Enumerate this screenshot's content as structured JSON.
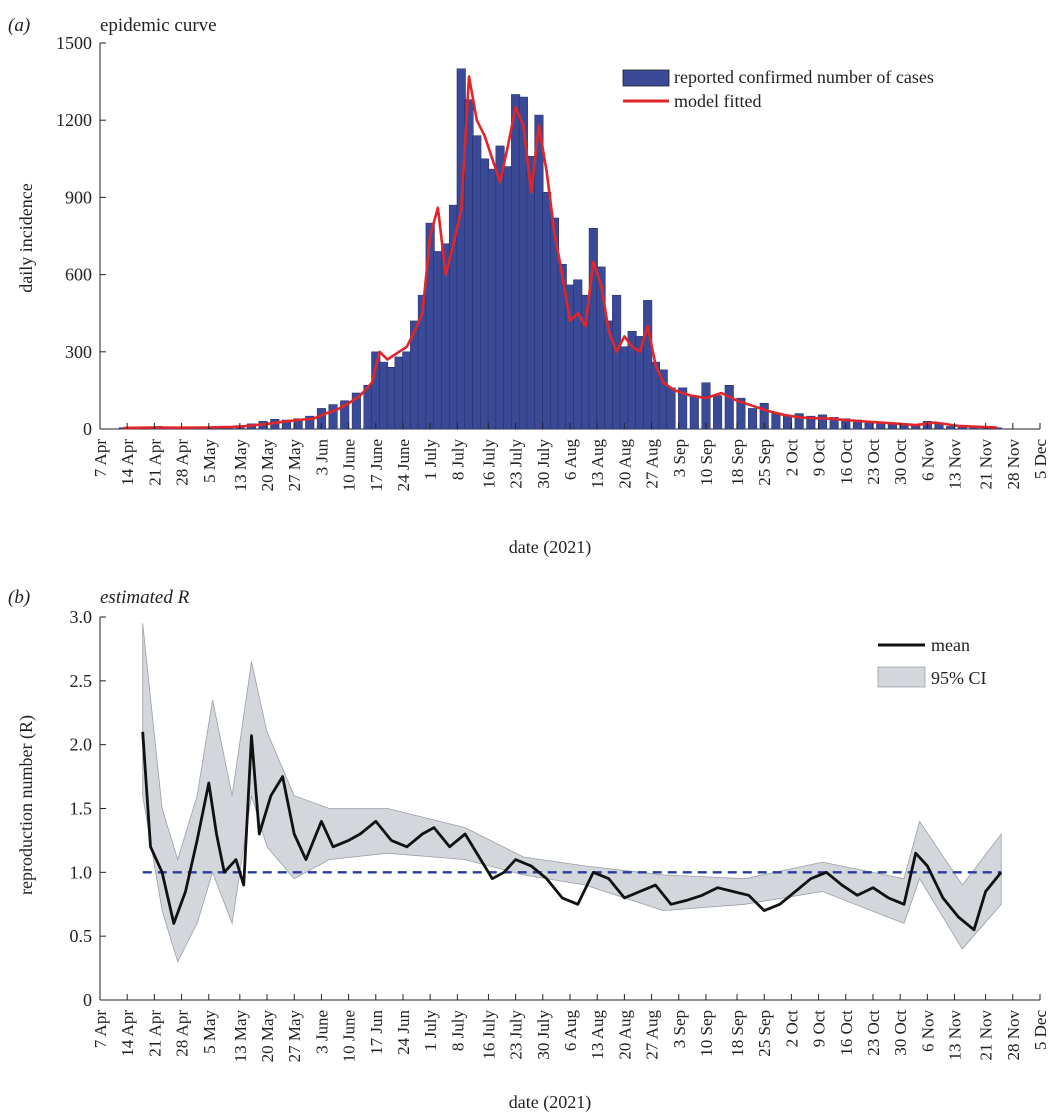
{
  "figure": {
    "xtick_labels": [
      "7 Apr",
      "14 Apr",
      "21 Apr",
      "28 Apr",
      "5 May",
      "13 May",
      "20 May",
      "27 May",
      "3 Jun",
      "10 June",
      "17 June",
      "24 June",
      "1 July",
      "8 July",
      "16 July",
      "23 July",
      "30 July",
      "6 Aug",
      "13 Aug",
      "20 Aug",
      "27 Aug",
      "3 Sep",
      "10 Sep",
      "18 Sep",
      "25 Sep",
      "2 Oct",
      "9 Oct",
      "16 Oct",
      "23 Oct",
      "30 Oct",
      "6 Nov",
      "13 Nov",
      "21 Nov",
      "28 Nov",
      "5 Dec"
    ]
  },
  "colors": {
    "bar": "#3b4a96",
    "model": "#e0262a",
    "mean": "#111111",
    "ci": "#d3d6da",
    "reference": "#2b3a9c"
  },
  "chart_data": [
    {
      "type": "bar",
      "panel_label": "(a)",
      "title": "epidemic curve",
      "xlabel": "date (2021)",
      "ylabel": "daily incidence",
      "ylim": [
        0,
        1500
      ],
      "yticks": [
        0,
        300,
        600,
        900,
        1200,
        1500
      ],
      "xticks": [
        "2021-04-07",
        "2021-04-14",
        "2021-04-21",
        "2021-04-28",
        "2021-05-05",
        "2021-05-13",
        "2021-05-20",
        "2021-05-27",
        "2021-06-03",
        "2021-06-10",
        "2021-06-17",
        "2021-06-24",
        "2021-07-01",
        "2021-07-08",
        "2021-07-16",
        "2021-07-23",
        "2021-07-30",
        "2021-08-06",
        "2021-08-13",
        "2021-08-20",
        "2021-08-27",
        "2021-09-03",
        "2021-09-10",
        "2021-09-18",
        "2021-09-25",
        "2021-10-02",
        "2021-10-09",
        "2021-10-16",
        "2021-10-23",
        "2021-10-30",
        "2021-11-06",
        "2021-11-13",
        "2021-11-21",
        "2021-11-28",
        "2021-12-05"
      ],
      "xtick_labels": [
        "7 Apr",
        "14 Apr",
        "21 Apr",
        "28 Apr",
        "5 May",
        "13 May",
        "20 May",
        "27 May",
        "3 Jun",
        "10 June",
        "17 June",
        "24 June",
        "1 July",
        "8 July",
        "16 July",
        "23 July",
        "30 July",
        "6 Aug",
        "13 Aug",
        "20 Aug",
        "27 Aug",
        "3 Sep",
        "10 Sep",
        "18 Sep",
        "25 Sep",
        "2 Oct",
        "9 Oct",
        "16 Oct",
        "23 Oct",
        "30 Oct",
        "6 Nov",
        "13 Nov",
        "21 Nov",
        "28 Nov",
        "5 Dec"
      ],
      "legend": [
        "reported confirmed number of cases",
        "model fitted"
      ],
      "legend_position": "top-right",
      "series": [
        {
          "name": "reported confirmed number of cases",
          "kind": "bar",
          "x": [
            "2021-04-13",
            "2021-04-15",
            "2021-04-20",
            "2021-04-22",
            "2021-04-25",
            "2021-04-28",
            "2021-05-01",
            "2021-05-04",
            "2021-05-07",
            "2021-05-10",
            "2021-05-13",
            "2021-05-16",
            "2021-05-19",
            "2021-05-22",
            "2021-05-25",
            "2021-05-28",
            "2021-05-31",
            "2021-06-03",
            "2021-06-06",
            "2021-06-09",
            "2021-06-12",
            "2021-06-15",
            "2021-06-17",
            "2021-06-19",
            "2021-06-21",
            "2021-06-23",
            "2021-06-25",
            "2021-06-27",
            "2021-06-29",
            "2021-07-01",
            "2021-07-03",
            "2021-07-05",
            "2021-07-07",
            "2021-07-09",
            "2021-07-11",
            "2021-07-13",
            "2021-07-15",
            "2021-07-17",
            "2021-07-19",
            "2021-07-21",
            "2021-07-23",
            "2021-07-25",
            "2021-07-27",
            "2021-07-29",
            "2021-07-31",
            "2021-08-02",
            "2021-08-04",
            "2021-08-06",
            "2021-08-08",
            "2021-08-10",
            "2021-08-12",
            "2021-08-14",
            "2021-08-16",
            "2021-08-18",
            "2021-08-20",
            "2021-08-22",
            "2021-08-24",
            "2021-08-26",
            "2021-08-28",
            "2021-08-30",
            "2021-09-01",
            "2021-09-04",
            "2021-09-07",
            "2021-09-10",
            "2021-09-13",
            "2021-09-16",
            "2021-09-19",
            "2021-09-22",
            "2021-09-25",
            "2021-09-28",
            "2021-10-01",
            "2021-10-04",
            "2021-10-07",
            "2021-10-10",
            "2021-10-13",
            "2021-10-16",
            "2021-10-19",
            "2021-10-22",
            "2021-10-25",
            "2021-10-28",
            "2021-10-31",
            "2021-11-03",
            "2021-11-06",
            "2021-11-09",
            "2021-11-12",
            "2021-11-15",
            "2021-11-18",
            "2021-11-21",
            "2021-11-24"
          ],
          "values": [
            5,
            6,
            4,
            10,
            8,
            5,
            6,
            7,
            9,
            10,
            12,
            20,
            30,
            38,
            35,
            40,
            50,
            80,
            95,
            110,
            140,
            170,
            300,
            260,
            240,
            280,
            300,
            420,
            520,
            800,
            690,
            720,
            870,
            1400,
            1280,
            1140,
            1050,
            1010,
            1100,
            1020,
            1300,
            1290,
            1060,
            1220,
            920,
            820,
            640,
            560,
            580,
            520,
            780,
            630,
            420,
            520,
            320,
            380,
            360,
            500,
            260,
            230,
            160,
            160,
            130,
            180,
            130,
            170,
            120,
            80,
            100,
            60,
            50,
            60,
            50,
            55,
            45,
            40,
            35,
            30,
            25,
            20,
            20,
            15,
            30,
            20,
            10,
            10,
            8,
            5,
            5
          ]
        },
        {
          "name": "model fitted",
          "kind": "line",
          "x": [
            "2021-04-13",
            "2021-04-20",
            "2021-04-27",
            "2021-05-04",
            "2021-05-11",
            "2021-05-15",
            "2021-05-20",
            "2021-05-24",
            "2021-05-28",
            "2021-06-01",
            "2021-06-04",
            "2021-06-07",
            "2021-06-10",
            "2021-06-13",
            "2021-06-16",
            "2021-06-18",
            "2021-06-20",
            "2021-06-23",
            "2021-06-25",
            "2021-06-27",
            "2021-06-29",
            "2021-07-01",
            "2021-07-03",
            "2021-07-05",
            "2021-07-07",
            "2021-07-09",
            "2021-07-11",
            "2021-07-13",
            "2021-07-15",
            "2021-07-17",
            "2021-07-19",
            "2021-07-21",
            "2021-07-23",
            "2021-07-25",
            "2021-07-27",
            "2021-07-29",
            "2021-07-31",
            "2021-08-02",
            "2021-08-04",
            "2021-08-06",
            "2021-08-08",
            "2021-08-10",
            "2021-08-12",
            "2021-08-14",
            "2021-08-16",
            "2021-08-18",
            "2021-08-20",
            "2021-08-22",
            "2021-08-24",
            "2021-08-26",
            "2021-08-28",
            "2021-08-30",
            "2021-09-02",
            "2021-09-06",
            "2021-09-10",
            "2021-09-14",
            "2021-09-18",
            "2021-09-22",
            "2021-09-26",
            "2021-09-30",
            "2021-10-04",
            "2021-10-08",
            "2021-10-12",
            "2021-10-16",
            "2021-10-22",
            "2021-10-28",
            "2021-11-03",
            "2021-11-08",
            "2021-11-14",
            "2021-11-20",
            "2021-11-24"
          ],
          "values": [
            4,
            6,
            5,
            6,
            8,
            12,
            20,
            28,
            35,
            40,
            60,
            75,
            100,
            130,
            180,
            300,
            270,
            300,
            320,
            380,
            450,
            750,
            860,
            600,
            720,
            850,
            1370,
            1200,
            1140,
            1050,
            960,
            1100,
            1250,
            1180,
            920,
            1180,
            1000,
            760,
            600,
            420,
            450,
            400,
            650,
            560,
            380,
            300,
            360,
            320,
            300,
            400,
            250,
            180,
            150,
            130,
            120,
            140,
            110,
            90,
            70,
            55,
            45,
            42,
            40,
            35,
            28,
            22,
            15,
            25,
            12,
            8,
            6
          ]
        }
      ]
    },
    {
      "type": "line",
      "panel_label": "(b)",
      "title": "estimated R",
      "xlabel": "date (2021)",
      "ylabel": "reproduction number (R)",
      "ylim": [
        0,
        3.0
      ],
      "yticks": [
        0,
        0.5,
        1.0,
        1.5,
        2.0,
        2.5,
        3.0
      ],
      "ytick_labels": [
        "0",
        "0.5",
        "1.0",
        "1.5",
        "2.0",
        "2.5",
        "3.0"
      ],
      "xticks": [
        "2021-04-07",
        "2021-04-14",
        "2021-04-21",
        "2021-04-28",
        "2021-05-05",
        "2021-05-13",
        "2021-05-20",
        "2021-05-27",
        "2021-06-03",
        "2021-06-10",
        "2021-06-17",
        "2021-06-24",
        "2021-07-01",
        "2021-07-08",
        "2021-07-16",
        "2021-07-23",
        "2021-07-30",
        "2021-08-06",
        "2021-08-13",
        "2021-08-20",
        "2021-08-27",
        "2021-09-03",
        "2021-09-10",
        "2021-09-18",
        "2021-09-25",
        "2021-10-02",
        "2021-10-09",
        "2021-10-16",
        "2021-10-23",
        "2021-10-30",
        "2021-11-06",
        "2021-11-13",
        "2021-11-21",
        "2021-11-28",
        "2021-12-05"
      ],
      "xtick_labels": [
        "7 Apr",
        "14 Apr",
        "21 Apr",
        "28 Apr",
        "5 May",
        "13 May",
        "20 May",
        "27 May",
        "3 June",
        "10 June",
        "17 Jun",
        "24 Jun",
        "1 July",
        "8 July",
        "16 July",
        "23 July",
        "30 July",
        "6 Aug",
        "13 Aug",
        "20 Aug",
        "27 Aug",
        "3 Sep",
        "10 Sep",
        "18 Sep",
        "25 Sep",
        "2 Oct",
        "9 Oct",
        "16 Oct",
        "23 Oct",
        "30 Oct",
        "6 Nov",
        "13 Nov",
        "21 Nov",
        "28 Nov",
        "5 Dec"
      ],
      "reference_line": {
        "y": 1.0,
        "style": "dashed"
      },
      "legend": [
        "mean",
        "95% CI"
      ],
      "legend_position": "top-right",
      "series": [
        {
          "name": "mean",
          "x": [
            "2021-04-18",
            "2021-04-20",
            "2021-04-23",
            "2021-04-26",
            "2021-04-29",
            "2021-05-02",
            "2021-05-05",
            "2021-05-07",
            "2021-05-09",
            "2021-05-12",
            "2021-05-14",
            "2021-05-16",
            "2021-05-18",
            "2021-05-21",
            "2021-05-24",
            "2021-05-27",
            "2021-05-30",
            "2021-06-03",
            "2021-06-06",
            "2021-06-10",
            "2021-06-13",
            "2021-06-17",
            "2021-06-21",
            "2021-06-25",
            "2021-06-29",
            "2021-07-02",
            "2021-07-06",
            "2021-07-10",
            "2021-07-14",
            "2021-07-17",
            "2021-07-20",
            "2021-07-23",
            "2021-07-27",
            "2021-07-31",
            "2021-08-04",
            "2021-08-08",
            "2021-08-12",
            "2021-08-16",
            "2021-08-20",
            "2021-08-24",
            "2021-08-28",
            "2021-09-01",
            "2021-09-05",
            "2021-09-09",
            "2021-09-13",
            "2021-09-17",
            "2021-09-21",
            "2021-09-25",
            "2021-09-29",
            "2021-10-03",
            "2021-10-07",
            "2021-10-11",
            "2021-10-15",
            "2021-10-19",
            "2021-10-23",
            "2021-10-27",
            "2021-10-31",
            "2021-11-03",
            "2021-11-06",
            "2021-11-10",
            "2021-11-14",
            "2021-11-18",
            "2021-11-21",
            "2021-11-25"
          ],
          "values": [
            2.1,
            1.2,
            1.0,
            0.6,
            0.85,
            1.25,
            1.7,
            1.3,
            1.0,
            1.1,
            0.9,
            2.07,
            1.3,
            1.6,
            1.75,
            1.3,
            1.1,
            1.4,
            1.2,
            1.25,
            1.3,
            1.4,
            1.25,
            1.2,
            1.3,
            1.35,
            1.2,
            1.3,
            1.1,
            0.95,
            1.0,
            1.1,
            1.05,
            0.95,
            0.8,
            0.75,
            1.0,
            0.95,
            0.8,
            0.85,
            0.9,
            0.75,
            0.78,
            0.82,
            0.88,
            0.85,
            0.82,
            0.7,
            0.75,
            0.85,
            0.95,
            1.0,
            0.9,
            0.82,
            0.88,
            0.8,
            0.75,
            1.15,
            1.05,
            0.8,
            0.65,
            0.55,
            0.85,
            1.0
          ]
        },
        {
          "name": "95% CI",
          "kind": "band",
          "x": [
            "2021-04-18",
            "2021-04-23",
            "2021-04-27",
            "2021-05-02",
            "2021-05-06",
            "2021-05-11",
            "2021-05-16",
            "2021-05-20",
            "2021-05-27",
            "2021-06-05",
            "2021-06-20",
            "2021-07-10",
            "2021-07-25",
            "2021-08-10",
            "2021-08-30",
            "2021-09-20",
            "2021-10-10",
            "2021-10-31",
            "2021-11-04",
            "2021-11-15",
            "2021-11-25"
          ],
          "lower": [
            1.6,
            0.7,
            0.3,
            0.6,
            1.0,
            0.6,
            1.6,
            1.2,
            0.95,
            1.1,
            1.15,
            1.1,
            0.98,
            0.9,
            0.7,
            0.75,
            0.85,
            0.6,
            0.95,
            0.4,
            0.75
          ],
          "upper": [
            2.95,
            1.5,
            1.1,
            1.6,
            2.35,
            1.6,
            2.65,
            2.1,
            1.6,
            1.5,
            1.5,
            1.35,
            1.12,
            1.05,
            0.98,
            0.95,
            1.08,
            0.95,
            1.4,
            0.9,
            1.3
          ]
        }
      ]
    }
  ]
}
